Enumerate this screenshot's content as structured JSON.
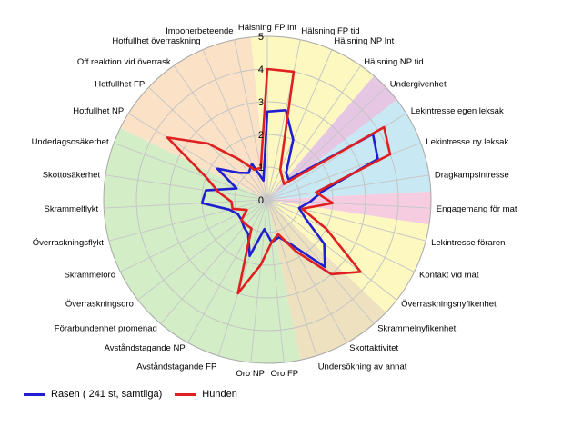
{
  "chart_data": {
    "type": "radar",
    "title": "",
    "rmax": 5,
    "ticks": [
      0,
      1,
      2,
      3,
      4,
      5
    ],
    "grid": true,
    "legend_position": "bottom-left",
    "categories": [
      "Hälsning FP int",
      "Hälsning FP tid",
      "Hälsning NP Int",
      "Hälsning NP tid",
      "Undergivenhet",
      "Lekintresse egen leksak",
      "Lekintresse ny leksak",
      "Dragkampsintresse",
      "Engagemang för mat",
      "Lekintresse föraren",
      "Kontakt vid mat",
      "Överraskningsnyfikenhet",
      "Skrammelnyfikenhet",
      "Skottaktivitet",
      "Undersökning av annat",
      "Oro FP",
      "Oro NP",
      "Avståndstagande FP",
      "Avståndstagande NP",
      "Förarbundenhet promenad",
      "Överraskningsoro",
      "Skrammeloro",
      "Överraskningsflykt",
      "Skrammelflykt",
      "Skottosäkerhet",
      "Underlagsosäkerhet",
      "Hotfullhet NP",
      "Hotfullhet FP",
      "Off reaktion vid överrask",
      "Hotfullhet överraskning",
      "Imponerbeteende"
    ],
    "series": [
      {
        "name": "Rasen ( 241 st, samtliga)",
        "color": "#1f1fd0",
        "values": [
          2.7,
          2.8,
          2.0,
          1.0,
          0.9,
          3.8,
          3.6,
          1.7,
          1.3,
          1.0,
          1.3,
          2.2,
          2.7,
          1.6,
          1.2,
          1.3,
          0.9,
          1.8,
          1.2,
          1.1,
          1.0,
          1.0,
          1.2,
          2.0,
          1.9,
          1.0,
          1.8,
          1.2,
          1.0,
          1.2,
          0.6
        ]
      },
      {
        "name": "Hunden",
        "color": "#e02020",
        "values": [
          4.0,
          4.0,
          1.0,
          0.8,
          0.7,
          4.2,
          4.0,
          1.5,
          2.0,
          1.1,
          2.0,
          3.6,
          3.0,
          1.8,
          1.1,
          1.3,
          2.0,
          3.0,
          1.0,
          1.0,
          1.0,
          0.7,
          1.1,
          1.1,
          1.5,
          2.0,
          3.6,
          2.5,
          1.5,
          1.0,
          1.0
        ]
      }
    ],
    "sectors": [
      {
        "from": 0,
        "to": 3,
        "color": "#fdf8bf"
      },
      {
        "from": 4,
        "to": 4,
        "color": "#e5c7e3"
      },
      {
        "from": 5,
        "to": 7,
        "color": "#c8e8f3"
      },
      {
        "from": 8,
        "to": 8,
        "color": "#f6cde0"
      },
      {
        "from": 9,
        "to": 11,
        "color": "#fdf8bf"
      },
      {
        "from": 12,
        "to": 14,
        "color": "#ede1bf"
      },
      {
        "from": 15,
        "to": 25,
        "color": "#d3eec6"
      },
      {
        "from": 26,
        "to": 30,
        "color": "#fbe2c7"
      }
    ]
  }
}
